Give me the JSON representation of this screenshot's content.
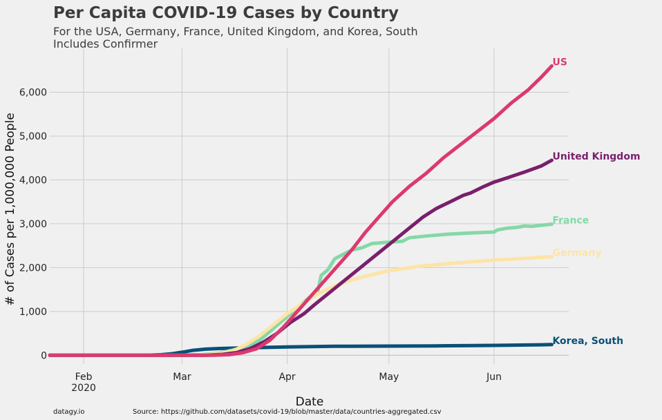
{
  "chart_data": {
    "type": "line",
    "title": "Per Capita COVID-19 Cases by Country",
    "subtitle_lines": [
      "For the USA, Germany, France, United Kingdom, and Korea, South",
      "Includes Confirmer"
    ],
    "xlabel": "Date",
    "ylabel": "# of Cases per 1,000,000 People",
    "x_ticks": [
      {
        "date": "2020-02-01",
        "label": "Feb",
        "sublabel": "2020"
      },
      {
        "date": "2020-03-01",
        "label": "Mar",
        "sublabel": ""
      },
      {
        "date": "2020-04-01",
        "label": "Apr",
        "sublabel": ""
      },
      {
        "date": "2020-05-01",
        "label": "May",
        "sublabel": ""
      },
      {
        "date": "2020-06-01",
        "label": "Jun",
        "sublabel": ""
      }
    ],
    "y_ticks": [
      {
        "value": 0,
        "label": "0"
      },
      {
        "value": 1000,
        "label": "1,000"
      },
      {
        "value": 2000,
        "label": "2,000"
      },
      {
        "value": 3000,
        "label": "3,000"
      },
      {
        "value": 4000,
        "label": "4,000"
      },
      {
        "value": 5000,
        "label": "5,000"
      },
      {
        "value": 6000,
        "label": "6,000"
      }
    ],
    "xlim": [
      "2020-01-22",
      "2020-06-23"
    ],
    "ylim": [
      -200,
      7000
    ],
    "grid": true,
    "series": [
      {
        "name": "Korea, South",
        "color": "#085078",
        "points": [
          [
            "2020-01-22",
            0
          ],
          [
            "2020-02-18",
            1
          ],
          [
            "2020-02-21",
            5
          ],
          [
            "2020-02-24",
            15
          ],
          [
            "2020-02-27",
            35
          ],
          [
            "2020-03-01",
            70
          ],
          [
            "2020-03-04",
            110
          ],
          [
            "2020-03-08",
            140
          ],
          [
            "2020-03-12",
            155
          ],
          [
            "2020-03-20",
            170
          ],
          [
            "2020-04-01",
            190
          ],
          [
            "2020-04-15",
            205
          ],
          [
            "2020-05-01",
            210
          ],
          [
            "2020-05-15",
            215
          ],
          [
            "2020-06-01",
            225
          ],
          [
            "2020-06-15",
            240
          ],
          [
            "2020-06-18",
            245
          ]
        ]
      },
      {
        "name": "France",
        "color": "#85d8a7",
        "points": [
          [
            "2020-01-22",
            0
          ],
          [
            "2020-03-01",
            2
          ],
          [
            "2020-03-07",
            15
          ],
          [
            "2020-03-12",
            50
          ],
          [
            "2020-03-16",
            120
          ],
          [
            "2020-03-20",
            200
          ],
          [
            "2020-03-24",
            350
          ],
          [
            "2020-03-27",
            550
          ],
          [
            "2020-03-30",
            750
          ],
          [
            "2020-04-02",
            950
          ],
          [
            "2020-04-05",
            1150
          ],
          [
            "2020-04-08",
            1350
          ],
          [
            "2020-04-10",
            1450
          ],
          [
            "2020-04-11",
            1820
          ],
          [
            "2020-04-13",
            1950
          ],
          [
            "2020-04-15",
            2200
          ],
          [
            "2020-04-17",
            2280
          ],
          [
            "2020-04-20",
            2400
          ],
          [
            "2020-04-23",
            2450
          ],
          [
            "2020-04-26",
            2550
          ],
          [
            "2020-04-28",
            2560
          ],
          [
            "2020-05-01",
            2580
          ],
          [
            "2020-05-05",
            2600
          ],
          [
            "2020-05-07",
            2680
          ],
          [
            "2020-05-12",
            2720
          ],
          [
            "2020-05-18",
            2760
          ],
          [
            "2020-05-25",
            2790
          ],
          [
            "2020-06-01",
            2810
          ],
          [
            "2020-06-02",
            2860
          ],
          [
            "2020-06-05",
            2900
          ],
          [
            "2020-06-08",
            2920
          ],
          [
            "2020-06-10",
            2950
          ],
          [
            "2020-06-12",
            2940
          ],
          [
            "2020-06-18",
            2990
          ]
        ]
      },
      {
        "name": "Germany",
        "color": "#fde4a5",
        "points": [
          [
            "2020-01-22",
            0
          ],
          [
            "2020-03-03",
            2
          ],
          [
            "2020-03-08",
            12
          ],
          [
            "2020-03-12",
            40
          ],
          [
            "2020-03-16",
            100
          ],
          [
            "2020-03-20",
            250
          ],
          [
            "2020-03-24",
            450
          ],
          [
            "2020-03-28",
            700
          ],
          [
            "2020-04-01",
            950
          ],
          [
            "2020-04-05",
            1150
          ],
          [
            "2020-04-10",
            1400
          ],
          [
            "2020-04-15",
            1580
          ],
          [
            "2020-04-20",
            1720
          ],
          [
            "2020-04-25",
            1820
          ],
          [
            "2020-05-01",
            1930
          ],
          [
            "2020-05-10",
            2030
          ],
          [
            "2020-05-20",
            2100
          ],
          [
            "2020-06-01",
            2170
          ],
          [
            "2020-06-10",
            2210
          ],
          [
            "2020-06-18",
            2250
          ]
        ]
      },
      {
        "name": "United Kingdom",
        "color": "#7a1f6c",
        "points": [
          [
            "2020-01-22",
            0
          ],
          [
            "2020-03-08",
            2
          ],
          [
            "2020-03-13",
            20
          ],
          [
            "2020-03-17",
            60
          ],
          [
            "2020-03-21",
            150
          ],
          [
            "2020-03-25",
            300
          ],
          [
            "2020-03-29",
            500
          ],
          [
            "2020-04-02",
            750
          ],
          [
            "2020-04-06",
            950
          ],
          [
            "2020-04-09",
            1150
          ],
          [
            "2020-04-13",
            1400
          ],
          [
            "2020-04-17",
            1650
          ],
          [
            "2020-04-21",
            1900
          ],
          [
            "2020-04-25",
            2150
          ],
          [
            "2020-04-29",
            2400
          ],
          [
            "2020-05-03",
            2650
          ],
          [
            "2020-05-07",
            2900
          ],
          [
            "2020-05-11",
            3150
          ],
          [
            "2020-05-15",
            3350
          ],
          [
            "2020-05-19",
            3500
          ],
          [
            "2020-05-23",
            3650
          ],
          [
            "2020-05-25",
            3700
          ],
          [
            "2020-05-29",
            3850
          ],
          [
            "2020-06-01",
            3950
          ],
          [
            "2020-06-05",
            4050
          ],
          [
            "2020-06-10",
            4180
          ],
          [
            "2020-06-15",
            4320
          ],
          [
            "2020-06-18",
            4450
          ]
        ]
      },
      {
        "name": "US",
        "color": "#db3a6e",
        "points": [
          [
            "2020-01-22",
            0
          ],
          [
            "2020-03-10",
            2
          ],
          [
            "2020-03-15",
            15
          ],
          [
            "2020-03-19",
            60
          ],
          [
            "2020-03-23",
            150
          ],
          [
            "2020-03-27",
            350
          ],
          [
            "2020-03-31",
            650
          ],
          [
            "2020-04-04",
            1000
          ],
          [
            "2020-04-08",
            1350
          ],
          [
            "2020-04-12",
            1700
          ],
          [
            "2020-04-16",
            2050
          ],
          [
            "2020-04-20",
            2400
          ],
          [
            "2020-04-24",
            2800
          ],
          [
            "2020-04-28",
            3150
          ],
          [
            "2020-05-02",
            3500
          ],
          [
            "2020-05-07",
            3850
          ],
          [
            "2020-05-12",
            4150
          ],
          [
            "2020-05-17",
            4500
          ],
          [
            "2020-05-22",
            4800
          ],
          [
            "2020-05-27",
            5100
          ],
          [
            "2020-06-01",
            5400
          ],
          [
            "2020-06-06",
            5750
          ],
          [
            "2020-06-11",
            6050
          ],
          [
            "2020-06-15",
            6350
          ],
          [
            "2020-06-18",
            6600
          ]
        ]
      }
    ],
    "footer": {
      "left": "datagy.io",
      "right": "Source: https://github.com/datasets/covid-19/blob/master/data/countries-aggregated.csv"
    }
  }
}
